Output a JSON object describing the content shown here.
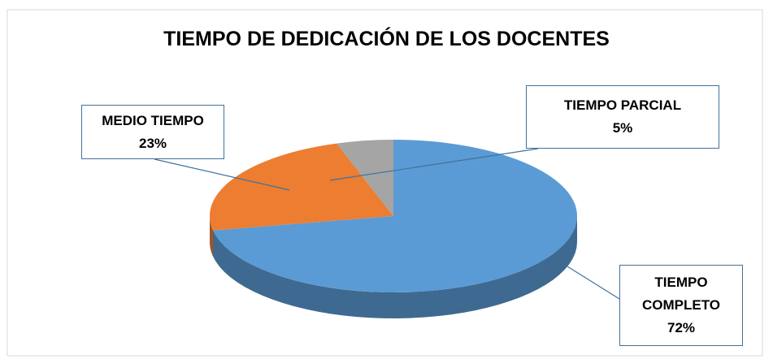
{
  "chart_data": {
    "type": "pie",
    "title": "TIEMPO DE DEDICACIÓN DE LOS DOCENTES",
    "categories": [
      "TIEMPO COMPLETO",
      "MEDIO TIEMPO",
      "TIEMPO PARCIAL"
    ],
    "values": [
      72,
      23,
      5
    ],
    "value_labels": [
      "72%",
      "23%",
      "5%"
    ],
    "colors": [
      "#5b9bd5",
      "#ed7d31",
      "#a5a5a5"
    ]
  }
}
